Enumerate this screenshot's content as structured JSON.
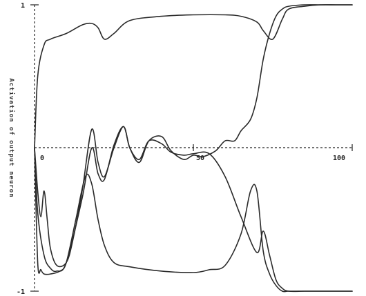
{
  "chart_data": {
    "type": "line",
    "title": "",
    "xlabel": "",
    "ylabel": "Activation of output neuron",
    "xlim": [
      0,
      100
    ],
    "ylim": [
      -1,
      1
    ],
    "x_ticks": [
      "0",
      "50",
      "100"
    ],
    "y_ticks": [
      "1",
      "-1"
    ],
    "grid": false,
    "series": [
      {
        "x": [
          0,
          1,
          3,
          5,
          10,
          15,
          18,
          20,
          22,
          25,
          30,
          40,
          50,
          60,
          65,
          70,
          72,
          75,
          78,
          80,
          85,
          90,
          95,
          100
        ],
        "values": [
          0.0,
          0.5,
          0.72,
          0.76,
          0.8,
          0.86,
          0.87,
          0.84,
          0.76,
          0.8,
          0.89,
          0.92,
          0.93,
          0.93,
          0.92,
          0.88,
          0.82,
          0.76,
          0.9,
          0.97,
          0.99,
          1.0,
          1.0,
          1.0
        ]
      },
      {
        "x": [
          0,
          1,
          3,
          5,
          7,
          10,
          15,
          18,
          20,
          22,
          25,
          28,
          30,
          33,
          36,
          40,
          43,
          47,
          50,
          53,
          57,
          60,
          63,
          65,
          68,
          70,
          72,
          74,
          76,
          78,
          80,
          85,
          90,
          95,
          100
        ],
        "values": [
          0.0,
          -0.45,
          -0.75,
          -0.84,
          -0.86,
          -0.8,
          -0.35,
          0.0,
          -0.18,
          -0.22,
          0.02,
          0.15,
          0.0,
          -0.1,
          0.05,
          0.08,
          -0.02,
          -0.08,
          -0.05,
          -0.06,
          -0.02,
          0.05,
          0.05,
          0.12,
          0.2,
          0.35,
          0.62,
          0.8,
          0.92,
          0.97,
          0.99,
          1.0,
          1.0,
          1.0,
          1.0
        ]
      },
      {
        "x": [
          0,
          1,
          2,
          3,
          4,
          5,
          7,
          10,
          12,
          15,
          18,
          20,
          22,
          25,
          28,
          30,
          33,
          36,
          40,
          43,
          47,
          50,
          55,
          60,
          65,
          70,
          72,
          74,
          76,
          78,
          80,
          85,
          90,
          95,
          100
        ],
        "values": [
          0.0,
          -0.3,
          -0.48,
          -0.3,
          -0.5,
          -0.7,
          -0.82,
          -0.8,
          -0.65,
          -0.3,
          0.13,
          -0.1,
          -0.2,
          0.0,
          0.15,
          0.0,
          -0.08,
          0.05,
          0.03,
          -0.03,
          -0.05,
          -0.04,
          -0.04,
          -0.2,
          -0.48,
          -0.73,
          -0.58,
          -0.75,
          -0.92,
          -0.98,
          -1.0,
          -1.0,
          -1.0,
          -1.0,
          -1.0
        ]
      },
      {
        "x": [
          0,
          1,
          2,
          3,
          5,
          8,
          10,
          13,
          16,
          18,
          20,
          22,
          25,
          30,
          40,
          50,
          55,
          60,
          65,
          68,
          70,
          72,
          74,
          76,
          78,
          80,
          85,
          90,
          95,
          100
        ],
        "values": [
          0.0,
          -0.8,
          -0.85,
          -0.88,
          -0.88,
          -0.86,
          -0.8,
          -0.5,
          -0.2,
          -0.25,
          -0.5,
          -0.68,
          -0.8,
          -0.83,
          -0.86,
          -0.87,
          -0.85,
          -0.82,
          -0.6,
          -0.3,
          -0.3,
          -0.72,
          -0.88,
          -0.96,
          -1.0,
          -1.0,
          -1.0,
          -1.0,
          -1.0,
          -1.0
        ]
      }
    ]
  }
}
